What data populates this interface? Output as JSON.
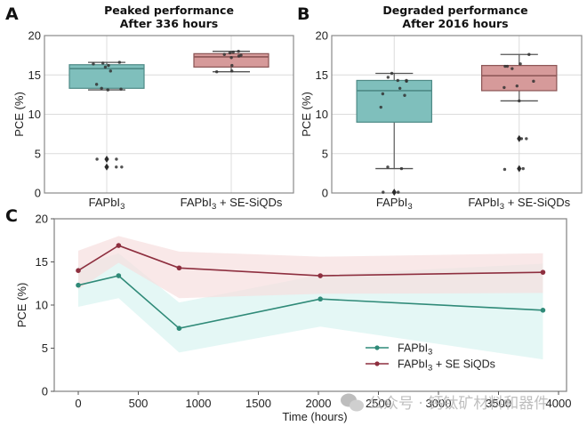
{
  "watermark": "公众号 · 钙钛矿材料和器件",
  "colors": {
    "teal_box": "#7fbfbc",
    "teal_edge": "#4e8a86",
    "red_box": "#d69a9a",
    "red_edge": "#8a5454",
    "teal_line": "#2f8a78",
    "red_line": "#8e2f3f",
    "teal_band": "#d8f3f1",
    "red_band": "#f7dede",
    "grid": "#dcdcdc",
    "frame": "#8a8a8a"
  },
  "chart_data": [
    {
      "panel": "A",
      "type": "box",
      "title": "Peaked performance\nAfter 336 hours",
      "title_lines": [
        "Peaked performance",
        "After 336 hours"
      ],
      "ylabel": "PCE (%)",
      "xlabel": "",
      "ylim": [
        0,
        20
      ],
      "yticks": [
        0,
        5,
        10,
        15,
        20
      ],
      "grid": true,
      "categories": [
        "FAPbI3",
        "FAPbI3 + SE-SiQDs"
      ],
      "category_labels": [
        {
          "base": "FAPbI",
          "sub": "3",
          "rest": ""
        },
        {
          "base": "FAPbI",
          "sub": "3",
          "rest": " + SE-SiQDs"
        }
      ],
      "boxes": [
        {
          "q1": 13.3,
          "median": 15.8,
          "q3": 16.3,
          "whisker_low": 13.1,
          "whisker_high": 16.6,
          "outliers": [
            4.3,
            3.3
          ],
          "points": [
            16.6,
            16.4,
            16.2,
            16.5,
            16.0,
            15.5,
            13.8,
            13.3,
            13.1,
            13.2,
            4.3,
            4.3,
            3.3,
            3.3
          ]
        },
        {
          "q1": 16.0,
          "median": 17.3,
          "q3": 17.7,
          "whisker_low": 15.4,
          "whisker_high": 18.0,
          "outliers": [],
          "points": [
            18.0,
            17.9,
            17.8,
            17.6,
            17.5,
            17.4,
            17.2,
            16.2,
            15.5,
            15.4
          ]
        }
      ]
    },
    {
      "panel": "B",
      "type": "box",
      "title_lines": [
        "Degraded performance",
        "After 2016 hours"
      ],
      "ylabel": "PCE (%)",
      "xlabel": "",
      "ylim": [
        0,
        20
      ],
      "yticks": [
        0,
        5,
        10,
        15,
        20
      ],
      "grid": true,
      "categories": [
        "FAPbI3",
        "FAPbI3 + SE-SiQDs"
      ],
      "category_labels": [
        {
          "base": "FAPbI",
          "sub": "3",
          "rest": ""
        },
        {
          "base": "FAPbI",
          "sub": "3",
          "rest": " + SE-SiQDs"
        }
      ],
      "boxes": [
        {
          "q1": 9.0,
          "median": 13.0,
          "q3": 14.3,
          "whisker_low": 3.1,
          "whisker_high": 15.2,
          "outliers": [
            0.1
          ],
          "points": [
            15.2,
            14.7,
            14.3,
            14.3,
            14.2,
            13.3,
            12.6,
            12.4,
            10.9,
            3.3,
            3.1,
            0.1,
            0.1
          ]
        },
        {
          "q1": 13.0,
          "median": 14.9,
          "q3": 16.2,
          "whisker_low": 11.7,
          "whisker_high": 17.6,
          "outliers": [
            6.9,
            3.1
          ],
          "points": [
            17.6,
            16.4,
            16.1,
            16.1,
            15.8,
            14.2,
            13.6,
            13.4,
            11.7,
            6.9,
            6.9,
            3.1,
            3.0
          ]
        }
      ]
    },
    {
      "panel": "C",
      "type": "line",
      "xlabel": "Time (hours)",
      "ylabel": "PCE (%)",
      "xlim": [
        -200,
        4150
      ],
      "ylim": [
        0,
        20
      ],
      "xticks": [
        0,
        500,
        1000,
        1500,
        2000,
        2500,
        3000,
        3500,
        4000
      ],
      "yticks": [
        0,
        5,
        10,
        15,
        20
      ],
      "grid": false,
      "legend": "lower-right",
      "x": [
        0,
        336,
        840,
        2016,
        3870
      ],
      "series": [
        {
          "name": "FAPbI3",
          "label": {
            "base": "FAPbI",
            "sub": "3",
            "rest": ""
          },
          "values": [
            12.3,
            13.4,
            7.3,
            10.7,
            9.4
          ],
          "band_low": [
            9.8,
            10.8,
            4.5,
            7.5,
            3.7
          ],
          "band_high": [
            14.5,
            16.0,
            10.3,
            13.5,
            14.8
          ]
        },
        {
          "name": "FAPbI3 + SE SiQDs",
          "label": {
            "base": "FAPbI",
            "sub": "3",
            "rest": " + SE SiQDs"
          },
          "values": [
            14.0,
            16.9,
            14.3,
            13.4,
            13.8
          ],
          "band_low": [
            11.8,
            14.9,
            10.8,
            11.3,
            11.4
          ],
          "band_high": [
            16.3,
            18.0,
            16.2,
            15.6,
            16.0
          ]
        }
      ]
    }
  ]
}
